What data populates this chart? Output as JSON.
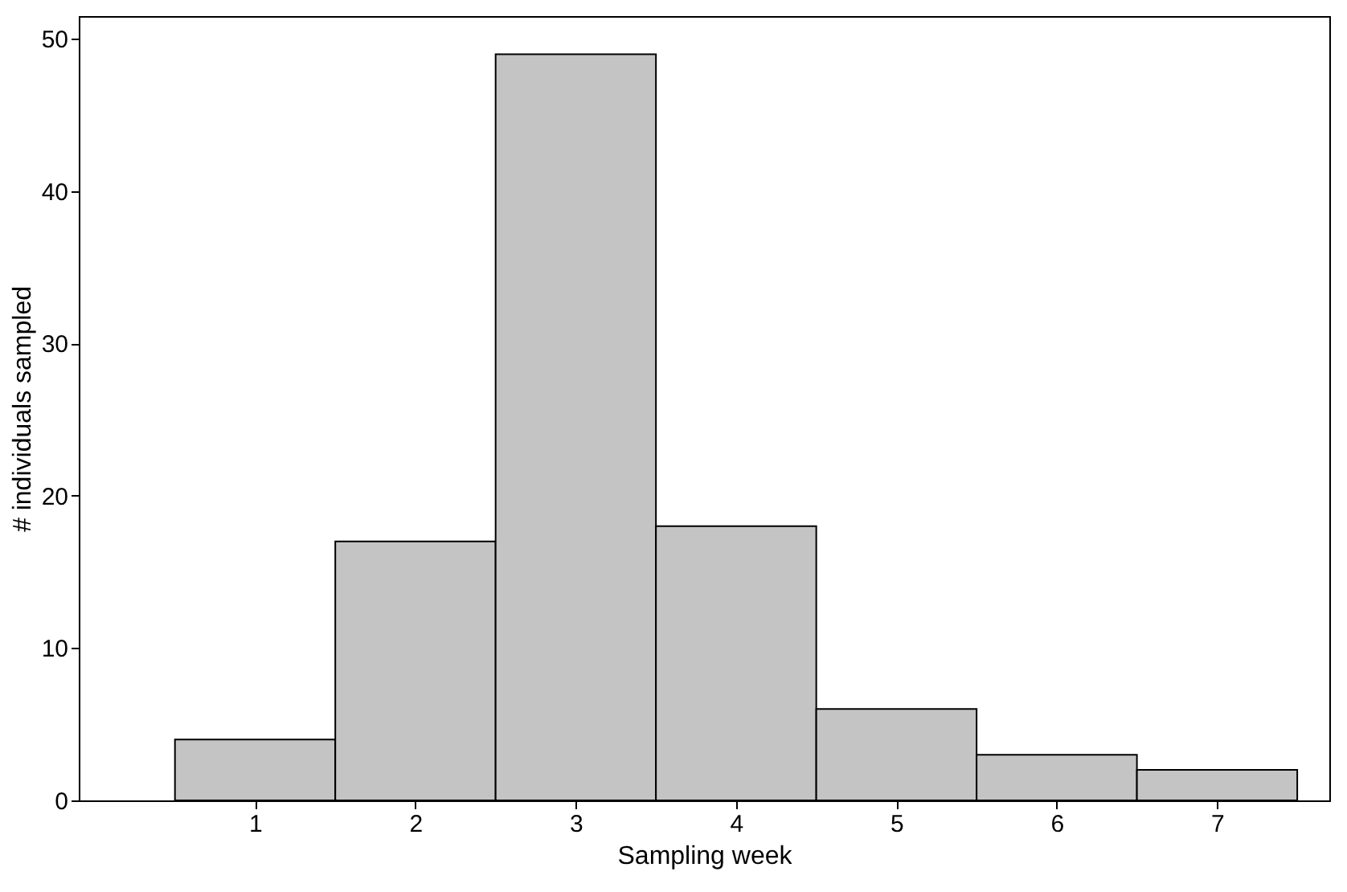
{
  "chart_data": {
    "type": "histogram",
    "xlabel": "Sampling week",
    "ylabel": "# individuals sampled",
    "bins": [
      0.5,
      1.5,
      2.5,
      3.5,
      4.5,
      5.5,
      6.5,
      7.5
    ],
    "values": [
      4,
      17,
      49,
      18,
      6,
      3,
      2
    ],
    "color": "#c4c4c4",
    "xlim": [
      -0.1,
      7.7
    ],
    "xticks": [
      1,
      2,
      3,
      4,
      5,
      6,
      7
    ],
    "ylim": [
      0,
      51.5
    ],
    "yticks": [
      0,
      10,
      20,
      30,
      40,
      50
    ],
    "grid": false
  }
}
